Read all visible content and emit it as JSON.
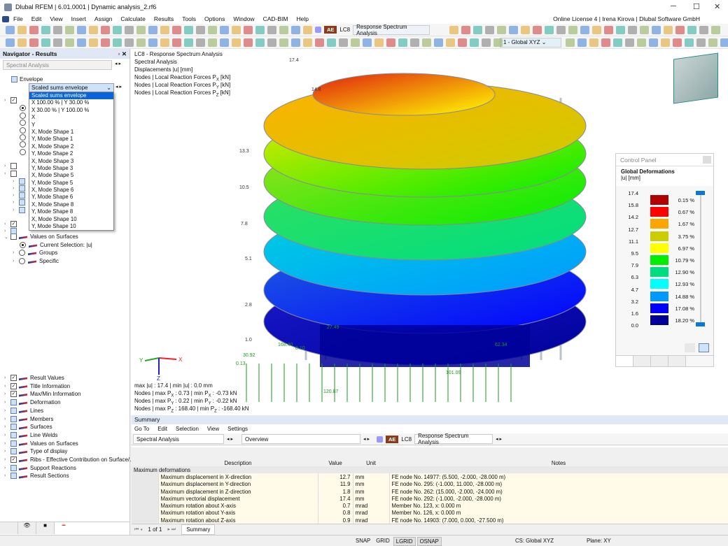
{
  "app": {
    "title": "Dlubal RFEM | 6.01.0001 | Dynamic analysis_2.rf6",
    "license": "Online License 4 | Irena Kirova | Dlubal Software GmbH"
  },
  "menu": [
    "File",
    "Edit",
    "View",
    "Insert",
    "Assign",
    "Calculate",
    "Results",
    "Tools",
    "Options",
    "Window",
    "CAD-BIM",
    "Help"
  ],
  "toolbar": {
    "ae": "AE",
    "lc": "LC8",
    "lc_name": "Response Spectrum Analysis",
    "cs": "1 - Global XYZ"
  },
  "navigator": {
    "title": "Navigator - Results",
    "analysis": "Spectral Analysis",
    "envelope": "Envelope",
    "dropdown_value": "Scaled sums envelope",
    "dropdown_options": [
      "Scaled sums envelope",
      "X 100.00 % | Y 30.00 %",
      "X 30.00 % | Y 100.00 %",
      "X",
      "Y",
      "X, Mode Shape 1",
      "Y, Mode Shape 1",
      "X, Mode Shape 2",
      "Y, Mode Shape 2",
      "X, Mode Shape 3",
      "Y, Mode Shape 3",
      "X, Mode Shape 5",
      "Y, Mode Shape 5",
      "X, Mode Shape 6",
      "Y, Mode Shape 6",
      "X, Mode Shape 8",
      "Y, Mode Shape 8",
      "X, Mode Shape 10",
      "Y, Mode Shape 10"
    ],
    "values_on_surfaces": "Values on Surfaces",
    "current_selection": "Current Selection: |u|",
    "groups": "Groups",
    "specific": "Specific",
    "display_items": [
      {
        "label": "Result Values",
        "checked": true
      },
      {
        "label": "Title Information",
        "checked": true
      },
      {
        "label": "Max/Min Information",
        "checked": true
      },
      {
        "label": "Deformation",
        "checked": false
      },
      {
        "label": "Lines",
        "checked": false
      },
      {
        "label": "Members",
        "checked": false
      },
      {
        "label": "Surfaces",
        "checked": false
      },
      {
        "label": "Line Welds",
        "checked": false
      },
      {
        "label": "Values on Surfaces",
        "checked": false
      },
      {
        "label": "Type of display",
        "checked": false
      },
      {
        "label": "Ribs - Effective Contribution on Surface/...",
        "checked": true
      },
      {
        "label": "Support Reactions",
        "checked": false
      },
      {
        "label": "Result Sections",
        "checked": false
      }
    ]
  },
  "viewport": {
    "title_lines": [
      "LC8 - Response Spectrum Analysis",
      "Spectral Analysis",
      "Displacements |u| [mm]"
    ],
    "reaction_lines": [
      [
        "Nodes | Local Reaction Forces P",
        "X",
        " [kN]"
      ],
      [
        "Nodes | Local Reaction Forces P",
        "Y",
        " [kN]"
      ],
      [
        "Nodes | Local Reaction Forces P",
        "Z",
        " [kN]"
      ]
    ],
    "maxmin": "max |u| : 17.4 | min |u| : 0.0 mm",
    "maxmin_px": [
      "Nodes | max P",
      "X",
      " : 0.73 | min P",
      "X",
      " : -0.73 kN"
    ],
    "maxmin_py": [
      "Nodes | max P",
      "Y",
      " : 0.22 | min P",
      "Y",
      " : -0.22 kN"
    ],
    "maxmin_pz": [
      "Nodes | max P",
      "Z",
      " : 168.40 | min P",
      "Z",
      " : -168.40 kN"
    ],
    "axes": {
      "x": "X",
      "y": "Y",
      "z": "Z"
    },
    "level_labels": [
      "17.4",
      "14.8",
      "13.3",
      "10.5",
      "7.8",
      "5.1",
      "2.8",
      "1.0"
    ],
    "reaction_labels": [
      "168.40",
      "30.92",
      "0.13",
      "27.49",
      "120.87",
      "101.09",
      "62.34",
      "0.10"
    ]
  },
  "control_panel": {
    "title": "Control Panel",
    "heading": "Global Deformations",
    "unit": "|u| [mm]",
    "scale_values": [
      "17.4",
      "15.8",
      "14.2",
      "12.7",
      "11.1",
      "9.5",
      "7.9",
      "6.3",
      "4.7",
      "3.2",
      "1.6",
      "0.0"
    ],
    "bands": [
      {
        "color": "#b30000",
        "pct": "0.15 %"
      },
      {
        "color": "#ff0000",
        "pct": "0.67 %"
      },
      {
        "color": "#ffa500",
        "pct": "1.67 %"
      },
      {
        "color": "#cccc00",
        "pct": "3.75 %"
      },
      {
        "color": "#ffff00",
        "pct": "6.97 %"
      },
      {
        "color": "#00ee00",
        "pct": "10.79 %"
      },
      {
        "color": "#00dd80",
        "pct": "12.90 %"
      },
      {
        "color": "#00ffff",
        "pct": "12.93 %"
      },
      {
        "color": "#0099ff",
        "pct": "14.88 %"
      },
      {
        "color": "#0000ff",
        "pct": "17.08 %"
      },
      {
        "color": "#000099",
        "pct": "18.20 %"
      }
    ]
  },
  "summary": {
    "title": "Summary",
    "menu": [
      "Go To",
      "Edit",
      "Selection",
      "View",
      "Settings"
    ],
    "analysis": "Spectral Analysis",
    "view": "Overview",
    "ae": "AE",
    "lc": "LC8",
    "lc_name": "Response Spectrum Analysis",
    "columns": [
      "Description",
      "Value",
      "Unit",
      "Notes"
    ],
    "group": "Maximum deformations",
    "rows": [
      [
        "Maximum displacement in X-direction",
        "12.7",
        "mm",
        "FE node No. 14977: (5.500, -2.000, -28.000 m)"
      ],
      [
        "Maximum displacement in Y-direction",
        "11.9",
        "mm",
        "FE node No. 295: (-1.000, 11.000, -28.000 m)"
      ],
      [
        "Maximum displacement in Z-direction",
        "1.8",
        "mm",
        "FE node No. 262: (15.000, -2.000, -24.000 m)"
      ],
      [
        "Maximum vectorial displacement",
        "17.4",
        "mm",
        "FE node No. 292: (-1.000, -2.000, -28.000 m)"
      ],
      [
        "Maximum rotation about X-axis",
        "0.7",
        "mrad",
        "Member No. 123, x: 0.000 m"
      ],
      [
        "Maximum rotation about Y-axis",
        "0.8",
        "mrad",
        "Member No. 126, x: 0.000 m"
      ],
      [
        "Maximum rotation about Z-axis",
        "0.9",
        "mrad",
        "FE node No. 14903: (7.000, 0.000, -27.500 m)"
      ]
    ],
    "pager": "1 of 1",
    "tab": "Summary"
  },
  "status": {
    "toggles": [
      "SNAP",
      "GRID",
      "LGRID",
      "OSNAP"
    ],
    "cs": "CS: Global XYZ",
    "plane": "Plane: XY"
  }
}
